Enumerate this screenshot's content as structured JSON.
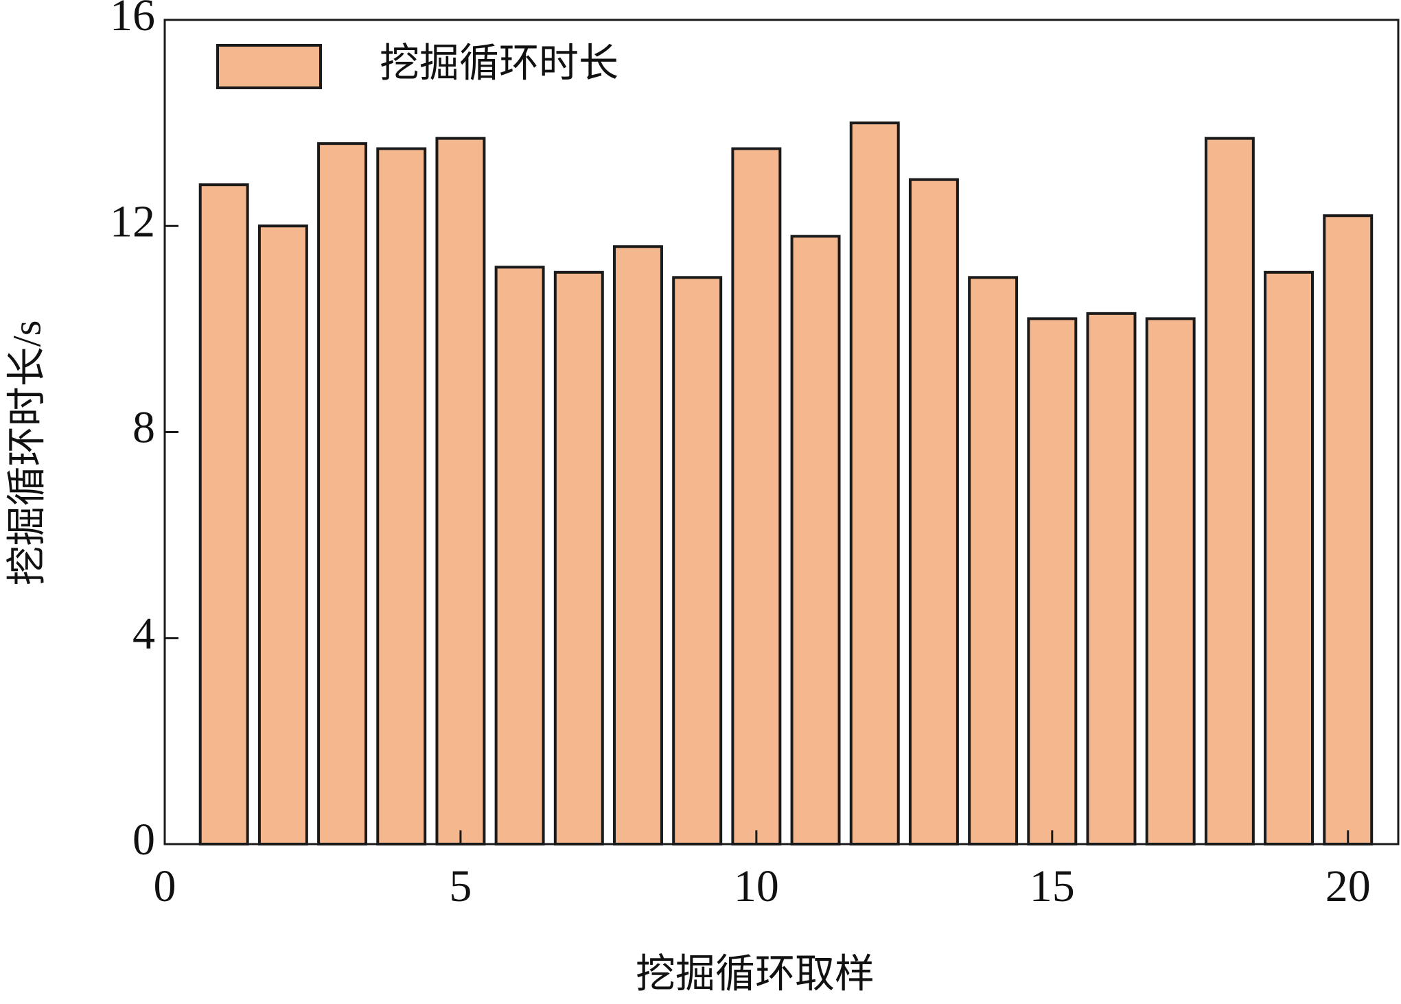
{
  "chart_data": {
    "type": "bar",
    "x_label": "挖掘循环取样",
    "y_label": "挖掘循环时长/s",
    "x": [
      1,
      2,
      3,
      4,
      5,
      6,
      7,
      8,
      9,
      10,
      11,
      12,
      13,
      14,
      15,
      16,
      17,
      18,
      19,
      20
    ],
    "series": [
      {
        "name": "挖掘循环时长",
        "color": "#f5b78e",
        "values": [
          12.8,
          12.0,
          13.6,
          13.5,
          13.7,
          11.2,
          11.1,
          11.6,
          11.0,
          13.5,
          11.8,
          14.0,
          12.9,
          11.0,
          10.2,
          10.3,
          10.2,
          13.7,
          11.1,
          12.2
        ]
      }
    ],
    "xlim": [
      0,
      20.85
    ],
    "xticks": [
      0,
      5,
      10,
      15,
      20
    ],
    "ylim": [
      0,
      16
    ],
    "yticks": [
      0,
      4,
      8,
      12,
      16
    ],
    "legend": "upper left"
  }
}
